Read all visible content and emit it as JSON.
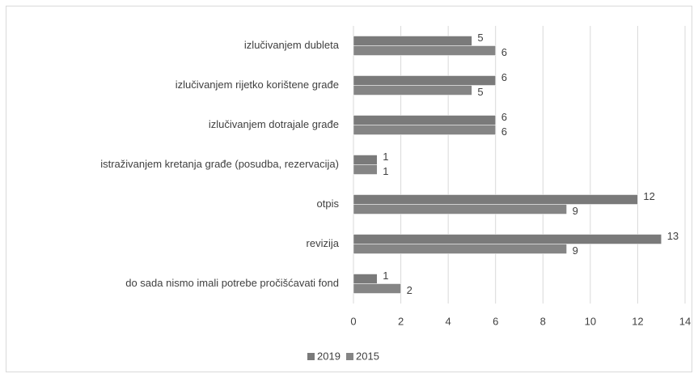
{
  "chart_data": {
    "type": "bar",
    "orientation": "horizontal",
    "categories": [
      "izlučivanjem dubleta",
      "izlučivanjem rijetko korištene građe",
      "izlučivanjem dotrajale građe",
      "istraživanjem kretanja građe (posudba, rezervacija)",
      "otpis",
      "revizija",
      "do sada nismo imali potrebe pročišćavati fond"
    ],
    "series": [
      {
        "name": "2019",
        "color": "#7a7a7a",
        "values": [
          5,
          6,
          6,
          1,
          12,
          13,
          1
        ]
      },
      {
        "name": "2015",
        "color": "#858585",
        "values": [
          6,
          5,
          6,
          1,
          9,
          9,
          2
        ]
      }
    ],
    "xlim": [
      0,
      14
    ],
    "xticks": [
      0,
      2,
      4,
      6,
      8,
      10,
      12,
      14
    ],
    "grid": true,
    "legend": "bottom"
  }
}
